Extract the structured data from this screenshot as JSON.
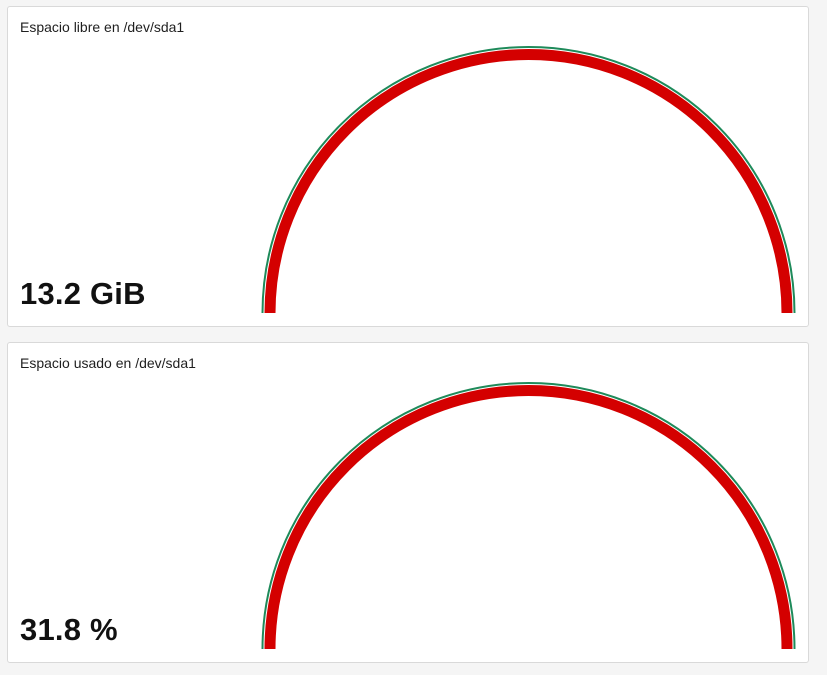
{
  "colors": {
    "gauge_fill": "#d40000",
    "gauge_outline": "#1e8a5a",
    "panel_bg": "#ffffff",
    "page_bg": "#f5f5f5"
  },
  "panels": [
    {
      "title": "Espacio libre en /dev/sda1",
      "value": "13.2 GiB"
    },
    {
      "title": "Espacio usado en /dev/sda1",
      "value": "31.8 %"
    }
  ]
}
